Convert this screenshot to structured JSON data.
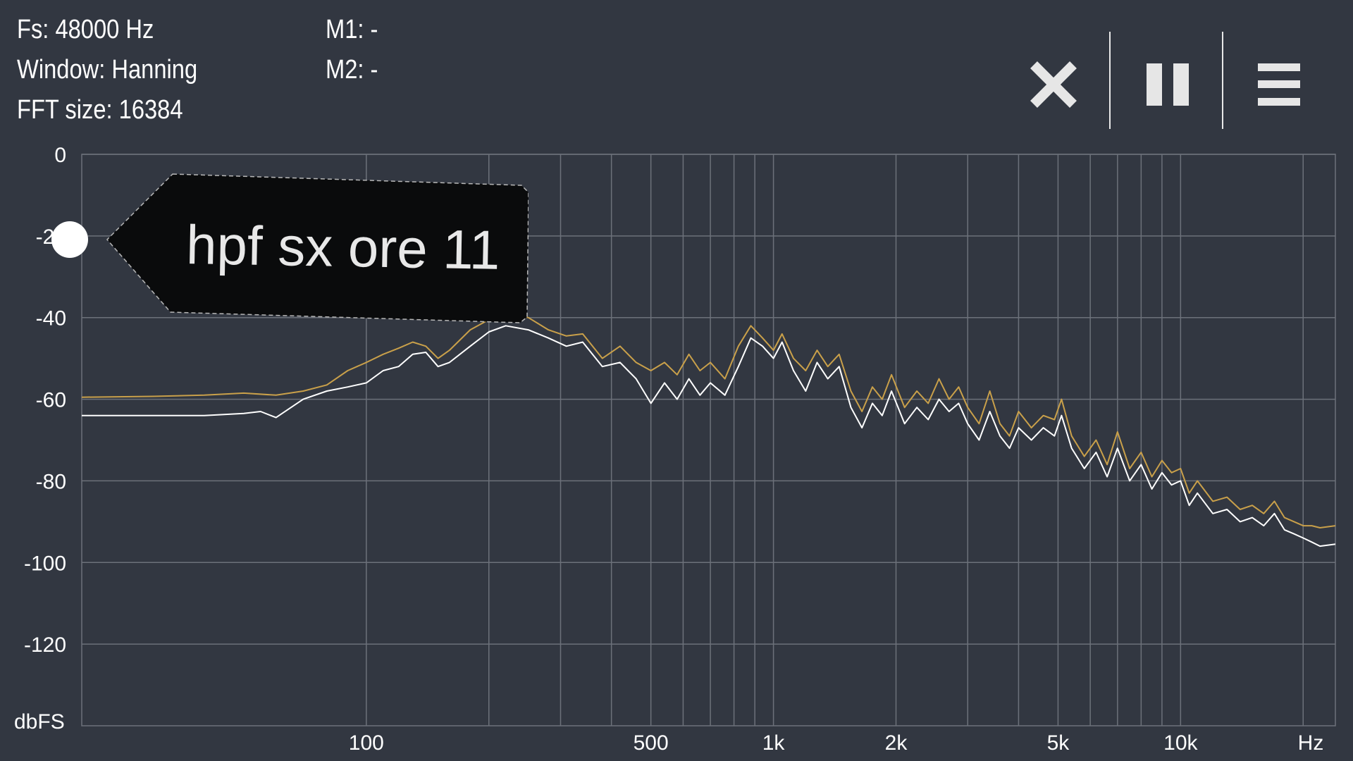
{
  "info": {
    "fs": "Fs: 48000 Hz",
    "window": "Window: Hanning",
    "fft_size": "FFT size: 16384",
    "m1": "M1: -",
    "m2": "M2: -"
  },
  "toolbar": {
    "close_icon": "close-icon",
    "pause_icon": "pause-icon",
    "menu_icon": "menu-icon"
  },
  "marker": {
    "label": "hpf sx ore 11"
  },
  "colors": {
    "background": "#323741",
    "grid": "#6c717a",
    "series_gold": "#c9a04a",
    "series_white": "#ffffff",
    "tag": "#0a0b0c"
  },
  "chart_data": {
    "type": "line",
    "x_scale": "log",
    "xlim": [
      20,
      24000
    ],
    "ylim": [
      -140,
      0
    ],
    "ylabel": "dbFS",
    "xlabel": "Hz",
    "y_ticks": [
      0,
      -20,
      -40,
      -60,
      -80,
      -100,
      -120
    ],
    "y_tick_labels": [
      "0",
      "-20",
      "-40",
      "-60",
      "-80",
      "-100",
      "-120"
    ],
    "x_grid": [
      100,
      200,
      300,
      400,
      500,
      600,
      700,
      800,
      900,
      1000,
      2000,
      3000,
      4000,
      5000,
      6000,
      7000,
      8000,
      9000,
      10000,
      20000
    ],
    "x_labels": [
      {
        "value": 100,
        "text": "100"
      },
      {
        "value": 500,
        "text": "500"
      },
      {
        "value": 1000,
        "text": "1k"
      },
      {
        "value": 2000,
        "text": "2k"
      },
      {
        "value": 5000,
        "text": "5k"
      },
      {
        "value": 10000,
        "text": "10k"
      }
    ],
    "grid": true,
    "series": [
      {
        "color": "#c9a04a",
        "points": [
          [
            20,
            -59.5
          ],
          [
            30,
            -59.3
          ],
          [
            40,
            -59
          ],
          [
            50,
            -58.5
          ],
          [
            60,
            -59
          ],
          [
            70,
            -58
          ],
          [
            80,
            -56.5
          ],
          [
            90,
            -53
          ],
          [
            100,
            -51
          ],
          [
            110,
            -49
          ],
          [
            120,
            -47.5
          ],
          [
            130,
            -46
          ],
          [
            140,
            -47
          ],
          [
            150,
            -50
          ],
          [
            160,
            -48
          ],
          [
            180,
            -43
          ],
          [
            200,
            -40.5
          ],
          [
            220,
            -39
          ],
          [
            250,
            -40
          ],
          [
            280,
            -43
          ],
          [
            310,
            -44.5
          ],
          [
            340,
            -44
          ],
          [
            380,
            -50
          ],
          [
            420,
            -47
          ],
          [
            460,
            -51
          ],
          [
            500,
            -53
          ],
          [
            540,
            -51
          ],
          [
            580,
            -54
          ],
          [
            620,
            -49
          ],
          [
            660,
            -53
          ],
          [
            700,
            -51
          ],
          [
            760,
            -55
          ],
          [
            820,
            -47
          ],
          [
            880,
            -42
          ],
          [
            940,
            -45
          ],
          [
            1000,
            -48
          ],
          [
            1050,
            -44
          ],
          [
            1120,
            -50
          ],
          [
            1200,
            -53
          ],
          [
            1280,
            -48
          ],
          [
            1360,
            -52
          ],
          [
            1450,
            -49
          ],
          [
            1550,
            -58
          ],
          [
            1650,
            -63
          ],
          [
            1750,
            -57
          ],
          [
            1850,
            -60
          ],
          [
            1950,
            -54
          ],
          [
            2100,
            -62
          ],
          [
            2250,
            -58
          ],
          [
            2400,
            -61
          ],
          [
            2550,
            -55
          ],
          [
            2700,
            -60
          ],
          [
            2850,
            -57
          ],
          [
            3000,
            -62
          ],
          [
            3200,
            -66
          ],
          [
            3400,
            -58
          ],
          [
            3600,
            -66
          ],
          [
            3800,
            -69
          ],
          [
            4000,
            -63
          ],
          [
            4300,
            -67
          ],
          [
            4600,
            -64
          ],
          [
            4900,
            -65
          ],
          [
            5100,
            -60
          ],
          [
            5400,
            -69
          ],
          [
            5800,
            -74
          ],
          [
            6200,
            -70
          ],
          [
            6600,
            -76
          ],
          [
            7000,
            -68
          ],
          [
            7500,
            -77
          ],
          [
            8000,
            -73
          ],
          [
            8500,
            -79
          ],
          [
            9000,
            -75
          ],
          [
            9500,
            -78
          ],
          [
            10000,
            -77
          ],
          [
            10500,
            -83
          ],
          [
            11000,
            -80
          ],
          [
            12000,
            -85
          ],
          [
            13000,
            -84
          ],
          [
            14000,
            -87
          ],
          [
            15000,
            -86
          ],
          [
            16000,
            -88
          ],
          [
            17000,
            -85
          ],
          [
            18000,
            -89
          ],
          [
            19000,
            -90
          ],
          [
            20000,
            -91
          ],
          [
            21000,
            -91
          ],
          [
            22000,
            -91.5
          ],
          [
            24000,
            -91
          ]
        ]
      },
      {
        "color": "#ffffff",
        "points": [
          [
            20,
            -64
          ],
          [
            30,
            -64
          ],
          [
            40,
            -64
          ],
          [
            50,
            -63.5
          ],
          [
            55,
            -63
          ],
          [
            60,
            -64.5
          ],
          [
            70,
            -60
          ],
          [
            80,
            -58
          ],
          [
            90,
            -57
          ],
          [
            100,
            -56
          ],
          [
            110,
            -53
          ],
          [
            120,
            -52
          ],
          [
            130,
            -49
          ],
          [
            140,
            -48.5
          ],
          [
            150,
            -52
          ],
          [
            160,
            -51
          ],
          [
            180,
            -47
          ],
          [
            200,
            -43.5
          ],
          [
            220,
            -42
          ],
          [
            250,
            -43
          ],
          [
            280,
            -45
          ],
          [
            310,
            -47
          ],
          [
            340,
            -46
          ],
          [
            380,
            -52
          ],
          [
            420,
            -51
          ],
          [
            460,
            -55
          ],
          [
            500,
            -61
          ],
          [
            540,
            -56
          ],
          [
            580,
            -60
          ],
          [
            620,
            -55
          ],
          [
            660,
            -59
          ],
          [
            700,
            -56
          ],
          [
            760,
            -59
          ],
          [
            820,
            -52
          ],
          [
            880,
            -45
          ],
          [
            940,
            -47
          ],
          [
            1000,
            -50
          ],
          [
            1050,
            -46
          ],
          [
            1120,
            -53
          ],
          [
            1200,
            -58
          ],
          [
            1280,
            -51
          ],
          [
            1360,
            -55
          ],
          [
            1450,
            -52
          ],
          [
            1550,
            -62
          ],
          [
            1650,
            -67
          ],
          [
            1750,
            -61
          ],
          [
            1850,
            -64
          ],
          [
            1950,
            -58
          ],
          [
            2100,
            -66
          ],
          [
            2250,
            -62
          ],
          [
            2400,
            -65
          ],
          [
            2550,
            -60
          ],
          [
            2700,
            -63
          ],
          [
            2850,
            -61
          ],
          [
            3000,
            -66
          ],
          [
            3200,
            -70
          ],
          [
            3400,
            -63
          ],
          [
            3600,
            -69
          ],
          [
            3800,
            -72
          ],
          [
            4000,
            -67
          ],
          [
            4300,
            -70
          ],
          [
            4600,
            -67
          ],
          [
            4900,
            -69
          ],
          [
            5100,
            -64
          ],
          [
            5400,
            -72
          ],
          [
            5800,
            -77
          ],
          [
            6200,
            -73
          ],
          [
            6600,
            -79
          ],
          [
            7000,
            -72
          ],
          [
            7500,
            -80
          ],
          [
            8000,
            -76
          ],
          [
            8500,
            -82
          ],
          [
            9000,
            -78
          ],
          [
            9500,
            -81
          ],
          [
            10000,
            -80
          ],
          [
            10500,
            -86
          ],
          [
            11000,
            -83
          ],
          [
            12000,
            -88
          ],
          [
            13000,
            -87
          ],
          [
            14000,
            -90
          ],
          [
            15000,
            -89
          ],
          [
            16000,
            -91
          ],
          [
            17000,
            -88
          ],
          [
            18000,
            -92
          ],
          [
            19000,
            -93
          ],
          [
            20000,
            -94
          ],
          [
            21000,
            -95
          ],
          [
            22000,
            -96
          ],
          [
            24000,
            -95.5
          ]
        ]
      }
    ]
  }
}
